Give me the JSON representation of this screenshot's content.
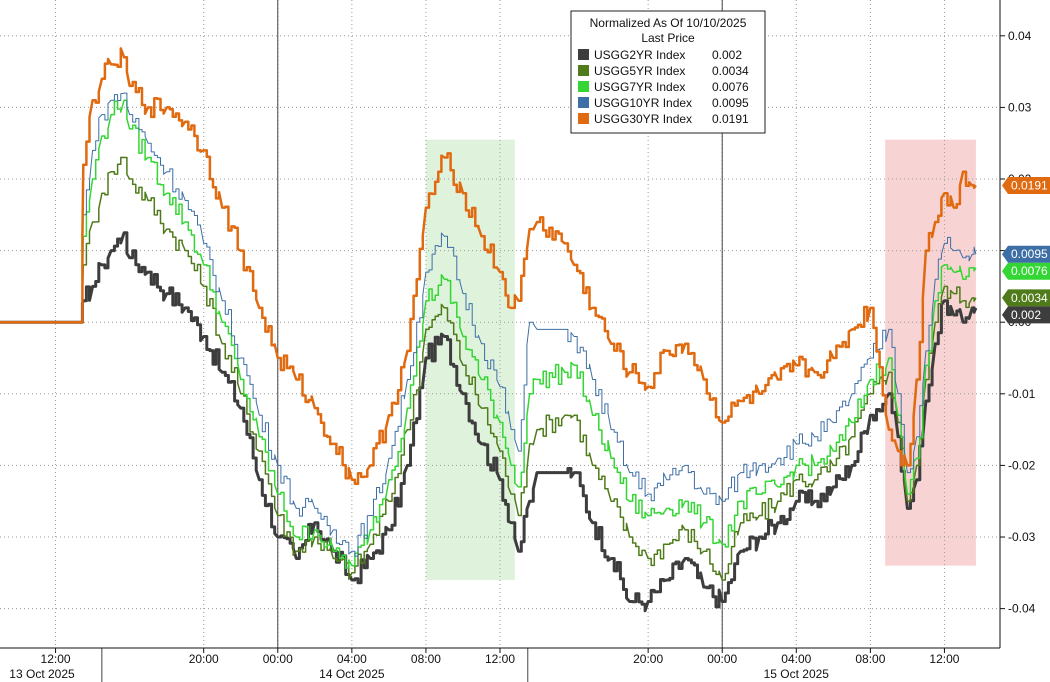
{
  "chart_data": {
    "type": "line",
    "legend": {
      "title": "Normalized As Of 10/10/2025",
      "subtitle": "Last Price",
      "placement": "top-center"
    },
    "x_ticks": [
      "12:00",
      "20:00",
      "00:00",
      "04:00",
      "08:00",
      "12:00",
      "20:00",
      "00:00",
      "04:00",
      "08:00",
      "12:00"
    ],
    "x_ticks_hours": [
      12,
      20,
      24,
      28,
      32,
      36,
      44,
      48,
      52,
      56,
      60
    ],
    "date_labels": [
      {
        "text": "13 Oct 2025",
        "hour": 3.5
      },
      {
        "text": "14 Oct 2025",
        "hour": 28
      },
      {
        "text": "15 Oct 2025",
        "hour": 52
      }
    ],
    "session_breaks_hours": [
      14.5,
      37.5
    ],
    "day_lines_hours": [
      24,
      48
    ],
    "y_ticks": [
      0.04,
      0.03,
      0.02,
      0.01,
      0.0,
      -0.01,
      -0.02,
      -0.03,
      -0.04
    ],
    "y_tick_labels": [
      "0.04",
      "0.03",
      "0.02",
      "0.01",
      "0.00",
      "-0.01",
      "-0.02",
      "-0.03",
      "-0.04"
    ],
    "ylim": [
      -0.0455,
      0.045
    ],
    "xlim_hours": [
      9,
      63
    ],
    "grid": true,
    "shaded_regions": [
      {
        "color": "#dff2dc",
        "x0": 32.0,
        "x1": 36.8,
        "y0": -0.036,
        "y1": 0.0255
      },
      {
        "color": "#f8d3d3",
        "x0": 56.8,
        "x1": 61.7,
        "y0": -0.034,
        "y1": 0.0255
      }
    ],
    "series": [
      {
        "name": "USGG2YR Index",
        "value_label": "0.002",
        "color": "#3d3d3d",
        "width": 3,
        "x": [
          9,
          13.4,
          13.5,
          14,
          14.5,
          15,
          15.7,
          16,
          17,
          18,
          19,
          20,
          21,
          22,
          23,
          24,
          25,
          26,
          27,
          28,
          29,
          30,
          31,
          32,
          33,
          34,
          35,
          36,
          36.6,
          37,
          37.6,
          38,
          39.5,
          40,
          41,
          42,
          43,
          44,
          45,
          46,
          47,
          48,
          49,
          50,
          51,
          52,
          53,
          54,
          55,
          56,
          57,
          57.5,
          58,
          58.5,
          59,
          59.5,
          60,
          60.5,
          61,
          61.5,
          61.7
        ],
        "y": [
          0,
          0,
          0.003,
          0.005,
          0.008,
          0.01,
          0.0125,
          0.009,
          0.007,
          0.004,
          0.002,
          -0.002,
          -0.007,
          -0.012,
          -0.022,
          -0.03,
          -0.033,
          -0.028,
          -0.032,
          -0.036,
          -0.033,
          -0.029,
          -0.02,
          -0.005,
          -0.002,
          -0.01,
          -0.017,
          -0.022,
          -0.028,
          -0.032,
          -0.025,
          -0.021,
          -0.021,
          -0.021,
          -0.028,
          -0.033,
          -0.039,
          -0.039,
          -0.036,
          -0.033,
          -0.037,
          -0.039,
          -0.032,
          -0.03,
          -0.028,
          -0.025,
          -0.025,
          -0.023,
          -0.02,
          -0.013,
          -0.01,
          -0.016,
          -0.026,
          -0.022,
          -0.011,
          -0.003,
          0.003,
          0.001,
          0.0,
          0.002,
          0.002
        ]
      },
      {
        "name": "USGG5YR Index",
        "value_label": "0.0034",
        "color": "#4f7b1a",
        "width": 1.5,
        "x": [
          9,
          13.4,
          13.5,
          14,
          14.5,
          15,
          15.7,
          16,
          17,
          18,
          19,
          20,
          21,
          22,
          23,
          24,
          25,
          26,
          27,
          28,
          29,
          30,
          31,
          32,
          33,
          34,
          35,
          36,
          36.6,
          37,
          37.6,
          38,
          39.5,
          40,
          41,
          42,
          43,
          44,
          45,
          46,
          47,
          48,
          49,
          50,
          51,
          52,
          53,
          54,
          55,
          56,
          57,
          57.5,
          58,
          58.5,
          59,
          59.5,
          60,
          60.5,
          61,
          61.5,
          61.7
        ],
        "y": [
          0,
          0,
          0.008,
          0.014,
          0.018,
          0.021,
          0.023,
          0.02,
          0.017,
          0.013,
          0.01,
          0.005,
          -0.003,
          -0.01,
          -0.018,
          -0.027,
          -0.032,
          -0.03,
          -0.033,
          -0.035,
          -0.031,
          -0.025,
          -0.015,
          -0.001,
          0.002,
          -0.006,
          -0.012,
          -0.018,
          -0.024,
          -0.027,
          -0.017,
          -0.015,
          -0.013,
          -0.013,
          -0.02,
          -0.025,
          -0.03,
          -0.033,
          -0.031,
          -0.029,
          -0.032,
          -0.036,
          -0.028,
          -0.027,
          -0.025,
          -0.022,
          -0.022,
          -0.02,
          -0.016,
          -0.01,
          -0.007,
          -0.014,
          -0.025,
          -0.02,
          -0.008,
          0.0,
          0.005,
          0.004,
          0.003,
          0.0034,
          0.0034
        ]
      },
      {
        "name": "USGG7YR Index",
        "value_label": "0.0076",
        "color": "#33d633",
        "width": 1.5,
        "x": [
          9,
          13.4,
          13.5,
          14,
          14.5,
          15,
          15.7,
          16,
          17,
          18,
          19,
          20,
          21,
          22,
          23,
          24,
          25,
          26,
          27,
          28,
          29,
          30,
          31,
          32,
          33,
          34,
          35,
          36,
          36.6,
          37,
          37.6,
          38,
          39.5,
          40,
          41,
          42,
          43,
          44,
          45,
          46,
          47,
          48,
          49,
          50,
          51,
          52,
          53,
          54,
          55,
          56,
          57,
          57.5,
          58,
          58.5,
          59,
          59.5,
          60,
          60.5,
          61,
          61.5,
          61.7
        ],
        "y": [
          0,
          0,
          0.012,
          0.02,
          0.026,
          0.029,
          0.031,
          0.027,
          0.023,
          0.018,
          0.014,
          0.008,
          0.0,
          -0.008,
          -0.016,
          -0.024,
          -0.03,
          -0.029,
          -0.032,
          -0.034,
          -0.029,
          -0.022,
          -0.012,
          0.003,
          0.006,
          -0.002,
          -0.008,
          -0.014,
          -0.02,
          -0.023,
          -0.01,
          -0.008,
          -0.007,
          -0.006,
          -0.013,
          -0.019,
          -0.025,
          -0.027,
          -0.026,
          -0.025,
          -0.028,
          -0.031,
          -0.025,
          -0.024,
          -0.023,
          -0.02,
          -0.02,
          -0.018,
          -0.014,
          -0.008,
          -0.005,
          -0.013,
          -0.024,
          -0.019,
          -0.006,
          0.003,
          0.008,
          0.007,
          0.006,
          0.0076,
          0.0076
        ]
      },
      {
        "name": "USGG10YR Index",
        "value_label": "0.0095",
        "color": "#3d6fa6",
        "width": 1,
        "x": [
          9,
          13.4,
          13.5,
          14,
          14.5,
          15,
          15.7,
          16,
          17,
          18,
          19,
          20,
          21,
          22,
          23,
          24,
          25,
          26,
          27,
          28,
          29,
          30,
          31,
          32,
          33,
          34,
          35,
          36,
          36.6,
          37,
          37.6,
          38,
          39.5,
          40,
          41,
          42,
          43,
          44,
          45,
          46,
          47,
          48,
          49,
          50,
          51,
          52,
          53,
          54,
          55,
          56,
          57,
          57.5,
          58,
          58.5,
          59,
          59.5,
          60,
          60.5,
          61,
          61.5,
          61.7
        ],
        "y": [
          0,
          0,
          0.015,
          0.024,
          0.029,
          0.031,
          0.032,
          0.029,
          0.025,
          0.021,
          0.017,
          0.011,
          0.003,
          -0.005,
          -0.013,
          -0.02,
          -0.026,
          -0.026,
          -0.029,
          -0.032,
          -0.027,
          -0.019,
          -0.008,
          0.007,
          0.012,
          0.004,
          -0.003,
          -0.009,
          -0.015,
          -0.018,
          0.0,
          -0.001,
          -0.001,
          -0.002,
          -0.008,
          -0.015,
          -0.021,
          -0.024,
          -0.022,
          -0.02,
          -0.024,
          -0.025,
          -0.021,
          -0.02,
          -0.019,
          -0.017,
          -0.016,
          -0.014,
          -0.01,
          -0.005,
          -0.001,
          -0.01,
          -0.021,
          -0.016,
          -0.004,
          0.006,
          0.011,
          0.01,
          0.009,
          0.0095,
          0.0095
        ]
      },
      {
        "name": "USGG30YR Index",
        "value_label": "0.0191",
        "color": "#e06a10",
        "width": 2.5,
        "x": [
          9,
          13.4,
          13.5,
          14,
          14.5,
          15,
          15.7,
          16,
          17,
          18,
          19,
          20,
          21,
          22,
          23,
          24,
          25,
          26,
          27,
          28,
          29,
          30,
          31,
          32,
          33,
          34,
          35,
          36,
          36.6,
          37,
          37.6,
          38,
          39.5,
          40,
          41,
          42,
          43,
          44,
          45,
          46,
          47,
          48,
          49,
          50,
          51,
          52,
          53,
          54,
          55,
          56,
          57,
          57.5,
          58,
          58.5,
          59,
          59.5,
          60,
          60.5,
          61,
          61.5,
          61.7
        ],
        "y": [
          0,
          0,
          0.022,
          0.031,
          0.034,
          0.036,
          0.037,
          0.033,
          0.03,
          0.03,
          0.028,
          0.024,
          0.016,
          0.01,
          0.002,
          -0.005,
          -0.008,
          -0.012,
          -0.017,
          -0.022,
          -0.02,
          -0.013,
          -0.004,
          0.016,
          0.023,
          0.018,
          0.012,
          0.007,
          0.002,
          0.003,
          0.013,
          0.014,
          0.011,
          0.008,
          0.002,
          -0.003,
          -0.007,
          -0.009,
          -0.004,
          -0.003,
          -0.008,
          -0.014,
          -0.011,
          -0.01,
          -0.008,
          -0.006,
          -0.007,
          -0.005,
          -0.001,
          0.002,
          -0.015,
          -0.018,
          -0.02,
          -0.008,
          0.01,
          0.014,
          0.018,
          0.016,
          0.021,
          0.0191,
          0.0191
        ]
      }
    ]
  }
}
